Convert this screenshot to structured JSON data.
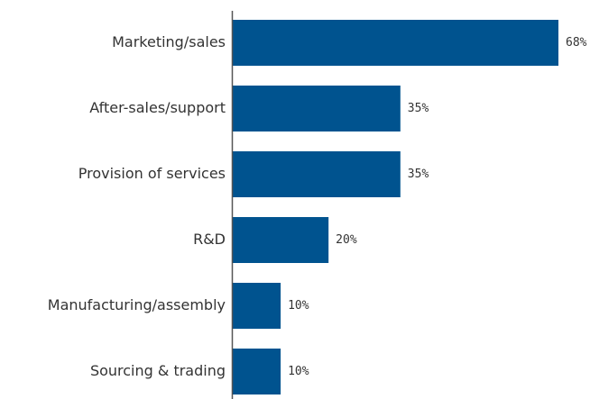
{
  "chart_data": {
    "type": "bar",
    "orientation": "horizontal",
    "categories": [
      "Marketing/sales",
      "After-sales/support",
      "Provision of services",
      "R&D",
      "Manufacturing/assembly",
      "Sourcing & trading"
    ],
    "values": [
      68,
      35,
      35,
      20,
      10,
      10
    ],
    "value_labels": [
      "68%",
      "35%",
      "35%",
      "20%",
      "10%",
      "10%"
    ],
    "unit": "%",
    "title": "",
    "xlabel": "",
    "ylabel": "",
    "xlim": [
      0,
      68
    ],
    "grid": false,
    "legend": "none",
    "bar_color": "#00538F",
    "axis_color": "#555555"
  }
}
